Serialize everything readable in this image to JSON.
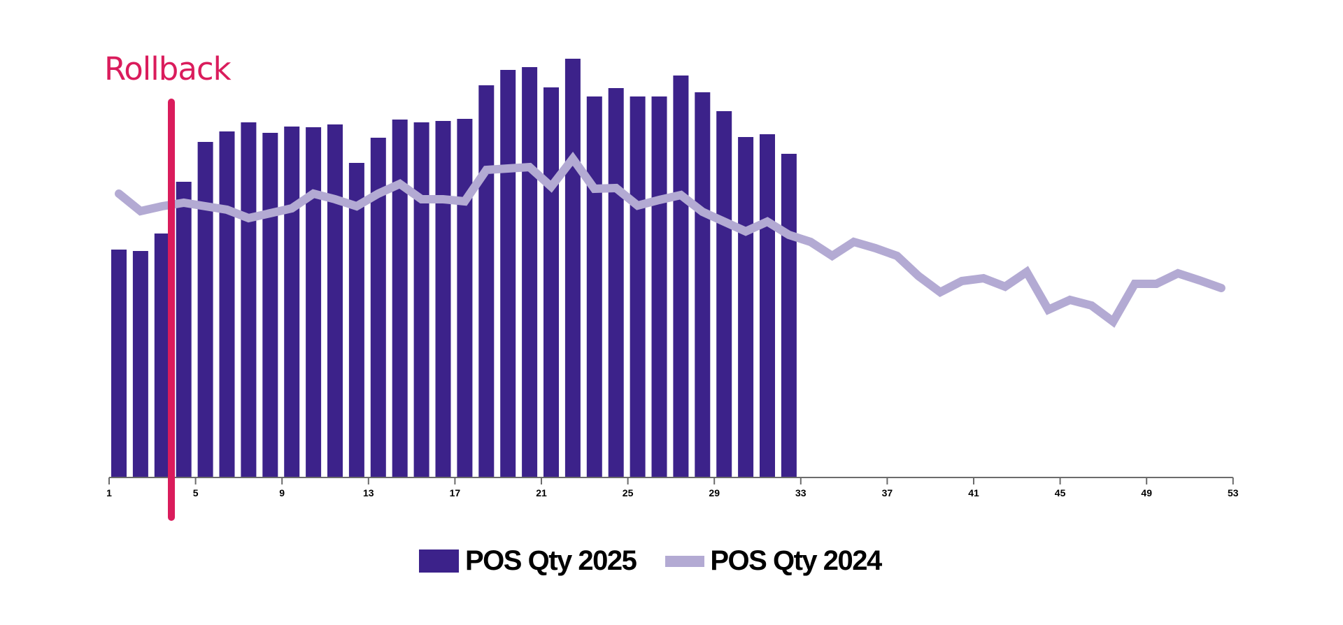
{
  "chart_data": {
    "type": "bar+line",
    "title": "",
    "xlabel": "",
    "ylabel": "",
    "x_ticks": [
      1,
      5,
      9,
      13,
      17,
      21,
      25,
      29,
      33,
      37,
      41,
      45,
      49,
      53
    ],
    "x_range": [
      1,
      53
    ],
    "grid": false,
    "legend_position": "bottom-center",
    "annotation": {
      "label": "Rollback",
      "x": 4,
      "color": "#DA1C5C"
    },
    "series": [
      {
        "name": "POS Qty 2025",
        "type": "bar",
        "color": "#3C228A",
        "x": [
          1,
          2,
          3,
          4,
          5,
          6,
          7,
          8,
          9,
          10,
          11,
          12,
          13,
          14,
          15,
          16,
          17,
          18,
          19,
          20,
          21,
          22,
          23,
          24,
          25,
          26,
          27,
          28,
          29,
          30,
          31,
          32
        ],
        "values": [
          326,
          324,
          349,
          423,
          480,
          495,
          508,
          493,
          502,
          501,
          505,
          450,
          486,
          512,
          508,
          510,
          513,
          561,
          583,
          587,
          558,
          599,
          545,
          557,
          545,
          545,
          575,
          551,
          524,
          487,
          491,
          463
        ]
      },
      {
        "name": "POS Qty 2024",
        "type": "line",
        "color": "#B3AAD3",
        "x": [
          1,
          2,
          3,
          4,
          5,
          6,
          7,
          8,
          9,
          10,
          11,
          12,
          13,
          14,
          15,
          16,
          17,
          18,
          19,
          20,
          21,
          22,
          23,
          24,
          25,
          26,
          27,
          28,
          29,
          30,
          31,
          32,
          33,
          34,
          35,
          36,
          37,
          38,
          39,
          40,
          41,
          42,
          43,
          44,
          45,
          46,
          47,
          48,
          49,
          50,
          51,
          52
        ],
        "values": [
          406,
          381,
          388,
          393,
          388,
          383,
          371,
          378,
          385,
          406,
          398,
          388,
          406,
          420,
          398,
          398,
          395,
          440,
          442,
          444,
          416,
          456,
          413,
          414,
          389,
          397,
          404,
          380,
          366,
          352,
          366,
          347,
          337,
          317,
          337,
          328,
          317,
          288,
          265,
          281,
          285,
          273,
          294,
          240,
          254,
          246,
          223,
          277,
          277,
          292,
          282,
          271
        ]
      }
    ],
    "ylim": [
      0,
      620
    ]
  },
  "legend": {
    "items": [
      {
        "label": "POS Qty 2025",
        "color": "#3C228A"
      },
      {
        "label": "POS Qty 2024",
        "color": "#B3AAD3"
      }
    ]
  },
  "annotation": {
    "label": "Rollback"
  }
}
